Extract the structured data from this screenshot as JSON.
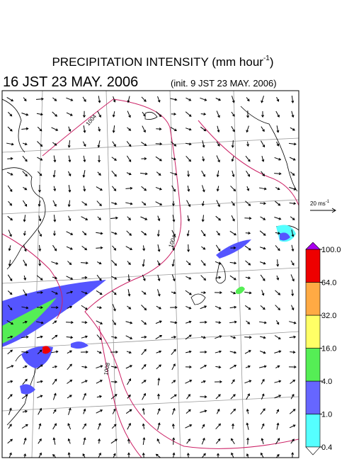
{
  "title": {
    "main": "PRECIPITATION INTENSITY (mm hour",
    "sup": "-1",
    "close": ")"
  },
  "time": {
    "valid": "16 JST 23 MAY. 2006",
    "init": "(init. 9 JST 23 MAY. 2006)"
  },
  "reference": {
    "speed": "20 ms",
    "sup": "-1"
  },
  "contours": [
    "1004",
    "1004",
    "1008"
  ],
  "colorbar": {
    "ticks": [
      0.4,
      {
        "value": 1,
        "label": "1.0"
      },
      {
        "value": 4,
        "label": "4.0"
      },
      {
        "value": 16,
        "label": "16.0"
      },
      {
        "value": 32,
        "label": "32.0"
      },
      {
        "value": 64,
        "label": "64.0"
      },
      {
        "value": 100,
        "label": "100.0"
      }
    ],
    "colors": [
      "#55ffff",
      "#6666ff",
      "#55ee55",
      "#ffff66",
      "#ffaa44",
      "#ee0000"
    ],
    "over_color": "#aa00ee",
    "under_color": "#ffffff"
  }
}
